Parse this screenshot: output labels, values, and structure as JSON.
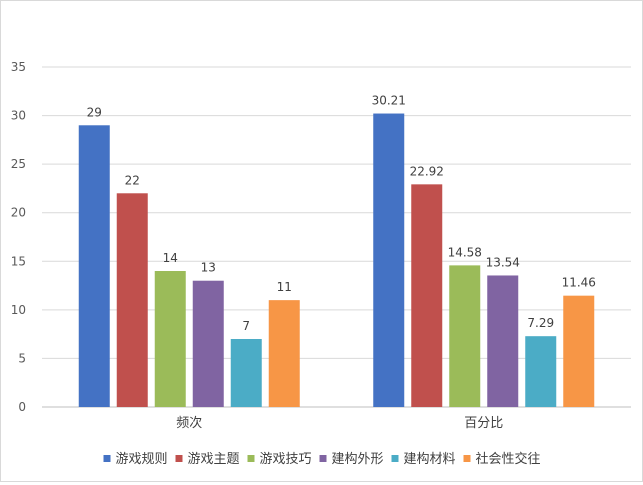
{
  "chart_data": {
    "type": "bar",
    "categories": [
      "频次",
      "百分比"
    ],
    "series": [
      {
        "name": "游戏规则",
        "color": "#4472C4",
        "values": [
          29,
          30.21
        ]
      },
      {
        "name": "游戏主题",
        "color": "#C0504D",
        "values": [
          22,
          22.92
        ]
      },
      {
        "name": "游戏技巧",
        "color": "#9BBB59",
        "values": [
          14,
          14.58
        ]
      },
      {
        "name": "建构外形",
        "color": "#8064A2",
        "values": [
          13,
          13.54
        ]
      },
      {
        "name": "建构材料",
        "color": "#4BACC6",
        "values": [
          7,
          7.29
        ]
      },
      {
        "name": "社会性交往",
        "color": "#F79646",
        "values": [
          11,
          11.46
        ]
      }
    ],
    "yticks": [
      0,
      5,
      10,
      15,
      20,
      25,
      30,
      35
    ],
    "ylim": [
      0,
      35
    ],
    "grid": true,
    "legend": "bottom",
    "title": "",
    "xlabel": "",
    "ylabel": ""
  }
}
